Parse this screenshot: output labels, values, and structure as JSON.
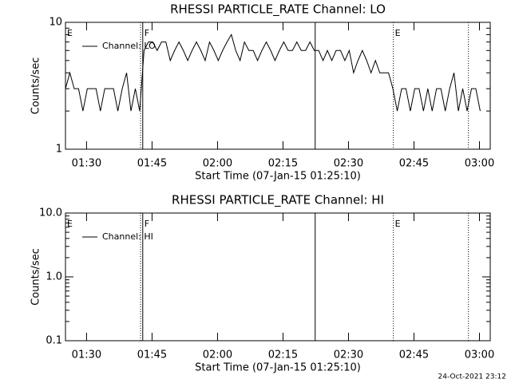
{
  "chart_data": [
    {
      "type": "line",
      "title": "RHESSI PARTICLE_RATE Channel: LO",
      "xlabel": "Start Time (07-Jan-15 01:25:10)",
      "ylabel": "Counts/sec",
      "log_y": true,
      "ylim": [
        1,
        10
      ],
      "yticks": [
        1,
        10
      ],
      "xlim": [
        0,
        97.3
      ],
      "xticks": [
        {
          "value": 4.83,
          "label": "01:30"
        },
        {
          "value": 19.83,
          "label": "01:45"
        },
        {
          "value": 34.83,
          "label": "02:00"
        },
        {
          "value": 49.83,
          "label": "02:15"
        },
        {
          "value": 64.83,
          "label": "02:30"
        },
        {
          "value": 79.83,
          "label": "02:45"
        },
        {
          "value": 94.83,
          "label": "03:00"
        }
      ],
      "legend": "upper left",
      "series": [
        {
          "name": "Channel: LO",
          "color": "#000000",
          "x": [
            0,
            1,
            2,
            3,
            4,
            5,
            6,
            7,
            8,
            9,
            10,
            11,
            12,
            13,
            14,
            15,
            16,
            17,
            18,
            19,
            20,
            21,
            22,
            23,
            24,
            25,
            26,
            27,
            28,
            29,
            30,
            31,
            32,
            33,
            34,
            35,
            36,
            37,
            38,
            39,
            40,
            41,
            42,
            43,
            44,
            45,
            46,
            47,
            48,
            49,
            50,
            51,
            52,
            53,
            54,
            55,
            56,
            57,
            58,
            59,
            60,
            61,
            62,
            63,
            64,
            65,
            66,
            67,
            68,
            69,
            70,
            71,
            72,
            73,
            74,
            75,
            76,
            77,
            78,
            79,
            80,
            81,
            82,
            83,
            84,
            85,
            86,
            87,
            88,
            89,
            90,
            91,
            92,
            93,
            94,
            95
          ],
          "values": [
            3,
            4,
            3,
            3,
            2,
            3,
            3,
            3,
            2,
            3,
            3,
            3,
            2,
            3,
            4,
            2,
            3,
            2,
            6,
            7,
            7,
            6,
            7,
            7,
            5,
            6,
            7,
            6,
            5,
            6,
            7,
            6,
            5,
            7,
            6,
            5,
            6,
            7,
            8,
            6,
            5,
            7,
            6,
            6,
            5,
            6,
            7,
            6,
            5,
            6,
            7,
            6,
            6,
            7,
            6,
            6,
            7,
            6,
            6,
            5,
            6,
            5,
            6,
            6,
            5,
            6,
            4,
            5,
            6,
            5,
            4,
            5,
            4,
            4,
            4,
            3,
            2,
            3,
            3,
            2,
            3,
            3,
            2,
            3,
            2,
            3,
            3,
            2,
            3,
            4,
            2,
            3,
            2,
            3,
            3,
            2
          ]
        }
      ],
      "vlines": [
        {
          "x": 17.2,
          "style": "dotted"
        },
        {
          "x": 17.7,
          "style": "solid"
        },
        {
          "x": 57.2,
          "style": "solid"
        },
        {
          "x": 75.1,
          "style": "dotted"
        },
        {
          "x": 92.3,
          "style": "dotted"
        }
      ],
      "annotations": [
        {
          "text": "E",
          "x": 0
        },
        {
          "text": "F",
          "x": 17.7
        },
        {
          "text": "E",
          "x": 75.1
        }
      ]
    },
    {
      "type": "line",
      "title": "RHESSI PARTICLE_RATE Channel: HI",
      "xlabel": "Start Time (07-Jan-15 01:25:10)",
      "ylabel": "Counts/sec",
      "log_y": true,
      "ylim": [
        0.1,
        10
      ],
      "yticks": [
        0.1,
        {
          "value": 1,
          "label": "1.0"
        },
        {
          "value": 10,
          "label": "10.0"
        }
      ],
      "xlim": [
        0,
        97.3
      ],
      "xticks": [
        {
          "value": 4.83,
          "label": "01:30"
        },
        {
          "value": 19.83,
          "label": "01:45"
        },
        {
          "value": 34.83,
          "label": "02:00"
        },
        {
          "value": 49.83,
          "label": "02:15"
        },
        {
          "value": 64.83,
          "label": "02:30"
        },
        {
          "value": 79.83,
          "label": "02:45"
        },
        {
          "value": 94.83,
          "label": "03:00"
        }
      ],
      "legend": "upper left",
      "series": [
        {
          "name": "Channel: HI",
          "color": "#000000"
        }
      ],
      "vlines": [
        {
          "x": 17.2,
          "style": "dotted"
        },
        {
          "x": 17.7,
          "style": "solid"
        },
        {
          "x": 57.2,
          "style": "solid"
        },
        {
          "x": 75.1,
          "style": "dotted"
        },
        {
          "x": 92.3,
          "style": "dotted"
        }
      ],
      "annotations": [
        {
          "text": "E",
          "x": 0
        },
        {
          "text": "F",
          "x": 17.7
        },
        {
          "text": "E",
          "x": 75.1
        }
      ]
    }
  ],
  "footer": "24-Oct-2021 23:12"
}
